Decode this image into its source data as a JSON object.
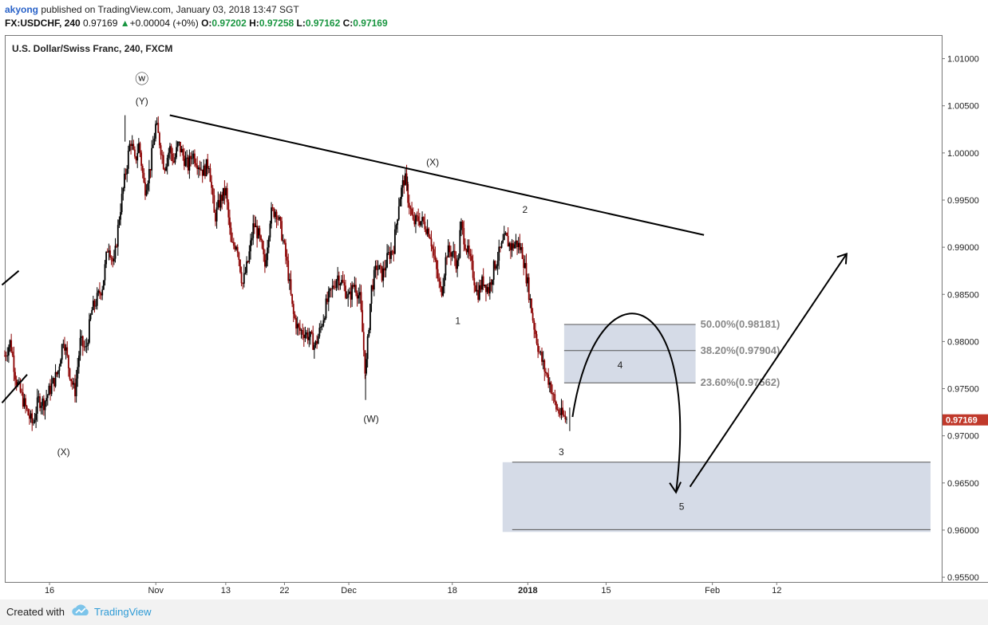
{
  "header": {
    "user": "akyong",
    "published": "published on TradingView.com, January 03, 2018 13:47 SGT",
    "symbol": "FX:USDCHF, 240",
    "last": "0.97169",
    "change_arrow": "▲",
    "change": "+0.00004 (+0%)",
    "o_label": "O:",
    "o": "0.97202",
    "h_label": "H:",
    "h": "0.97258",
    "l_label": "L:",
    "l": "0.97162",
    "c_label": "C:",
    "c": "0.97169"
  },
  "chart_data": {
    "type": "candlestick",
    "title": "U.S. Dollar/Swiss Franc, 240, FXCM",
    "ylim": [
      0.9545,
      1.0125
    ],
    "y_ticks": [
      "1.01000",
      "1.00500",
      "1.00000",
      "0.99500",
      "0.99000",
      "0.98500",
      "0.98000",
      "0.97500",
      "0.97000",
      "0.96500",
      "0.96000",
      "0.95500"
    ],
    "x_ticks": [
      "16",
      "Nov",
      "13",
      "22",
      "Dec",
      "18",
      "2018",
      "15",
      "Feb",
      "12"
    ],
    "last_price": "0.97169",
    "price_path": [
      [
        0,
        0.9785
      ],
      [
        4,
        0.98
      ],
      [
        8,
        0.976
      ],
      [
        12,
        0.9742
      ],
      [
        16,
        0.9725
      ],
      [
        20,
        0.9712
      ],
      [
        24,
        0.9738
      ],
      [
        28,
        0.9735
      ],
      [
        32,
        0.9748
      ],
      [
        38,
        0.9768
      ],
      [
        42,
        0.9805
      ],
      [
        46,
        0.977
      ],
      [
        50,
        0.9745
      ],
      [
        54,
        0.98
      ],
      [
        58,
        0.979
      ],
      [
        62,
        0.9832
      ],
      [
        66,
        0.9845
      ],
      [
        70,
        0.986
      ],
      [
        74,
        0.9905
      ],
      [
        78,
        0.988
      ],
      [
        82,
        0.9935
      ],
      [
        86,
        0.9975
      ],
      [
        90,
        1.0015
      ],
      [
        93,
        0.999
      ],
      [
        96,
        1.001
      ],
      [
        100,
        0.996
      ],
      [
        104,
        0.9985
      ],
      [
        108,
        1.003
      ],
      [
        111,
        1.001
      ],
      [
        114,
        0.9985
      ],
      [
        118,
        1.0005
      ],
      [
        121,
        0.999
      ],
      [
        124,
        1.001
      ],
      [
        128,
        0.9995
      ],
      [
        131,
        0.9985
      ],
      [
        134,
        1.0
      ],
      [
        138,
        0.999
      ],
      [
        142,
        0.998
      ],
      [
        146,
        0.999
      ],
      [
        150,
        0.993
      ],
      [
        154,
        0.995
      ],
      [
        158,
        0.996
      ],
      [
        162,
        0.99
      ],
      [
        166,
        0.9905
      ],
      [
        170,
        0.986
      ],
      [
        174,
        0.9885
      ],
      [
        178,
        0.9925
      ],
      [
        182,
        0.991
      ],
      [
        186,
        0.988
      ],
      [
        190,
        0.9935
      ],
      [
        194,
        0.994
      ],
      [
        198,
        0.9915
      ],
      [
        202,
        0.988
      ],
      [
        206,
        0.983
      ],
      [
        210,
        0.9812
      ],
      [
        214,
        0.981
      ],
      [
        218,
        0.9805
      ],
      [
        222,
        0.9795
      ],
      [
        226,
        0.9815
      ],
      [
        230,
        0.984
      ],
      [
        234,
        0.9855
      ],
      [
        238,
        0.987
      ],
      [
        242,
        0.986
      ],
      [
        246,
        0.9845
      ],
      [
        250,
        0.9862
      ],
      [
        254,
        0.9845
      ],
      [
        258,
        0.9765
      ],
      [
        262,
        0.9855
      ],
      [
        266,
        0.988
      ],
      [
        270,
        0.987
      ],
      [
        274,
        0.989
      ],
      [
        278,
        0.99
      ],
      [
        282,
        0.995
      ],
      [
        286,
        0.9975
      ],
      [
        288,
        0.9955
      ],
      [
        292,
        0.9925
      ],
      [
        296,
        0.993
      ],
      [
        300,
        0.9925
      ],
      [
        304,
        0.9915
      ],
      [
        308,
        0.988
      ],
      [
        312,
        0.985
      ],
      [
        316,
        0.9895
      ],
      [
        320,
        0.9895
      ],
      [
        324,
        0.988
      ],
      [
        326,
        0.9925
      ],
      [
        330,
        0.99
      ],
      [
        334,
        0.9878
      ],
      [
        338,
        0.985
      ],
      [
        342,
        0.9865
      ],
      [
        346,
        0.9855
      ],
      [
        350,
        0.988
      ],
      [
        354,
        0.9895
      ],
      [
        358,
        0.991
      ],
      [
        362,
        0.99
      ],
      [
        366,
        0.9905
      ],
      [
        370,
        0.9895
      ],
      [
        374,
        0.986
      ],
      [
        378,
        0.982
      ],
      [
        382,
        0.979
      ],
      [
        386,
        0.977
      ],
      [
        390,
        0.9755
      ],
      [
        394,
        0.973
      ],
      [
        398,
        0.9722
      ],
      [
        402,
        0.9717
      ]
    ],
    "trendlines": [
      {
        "x1": 118,
        "y1": 1.004,
        "x2": 500,
        "y2": 0.9913
      },
      {
        "x1": -2,
        "y1": 0.986,
        "x2": 10,
        "y2": 0.9875
      },
      {
        "x1": -2,
        "y1": 0.9735,
        "x2": 16,
        "y2": 0.9765
      }
    ],
    "wave_labels": [
      {
        "text": "ⓦ",
        "x": 98,
        "y": 1.0077
      },
      {
        "text": "(Y)",
        "x": 98,
        "y": 1.0055
      },
      {
        "text": "(X)",
        "x": 306,
        "y": 0.999
      },
      {
        "text": "2",
        "x": 372,
        "y": 0.994
      },
      {
        "text": "1",
        "x": 324,
        "y": 0.9822
      },
      {
        "text": "4",
        "x": 440,
        "y": 0.9775
      },
      {
        "text": "(W)",
        "x": 262,
        "y": 0.9718
      },
      {
        "text": "(X)",
        "x": 42,
        "y": 0.9683
      },
      {
        "text": "3",
        "x": 398,
        "y": 0.9683
      },
      {
        "text": "5",
        "x": 484,
        "y": 0.9625
      }
    ],
    "fib_levels": [
      {
        "label": "50.00%(0.98181)",
        "value": 0.98181
      },
      {
        "label": "38.20%(0.97904)",
        "value": 0.97904
      },
      {
        "label": "23.60%(0.97562)",
        "value": 0.97562
      }
    ],
    "fib_zone": {
      "x_start": 400,
      "x_end": 494,
      "top": 0.98181,
      "bottom": 0.97562
    },
    "target_zone": {
      "x_start": 356,
      "x_end": 662,
      "top": 0.9672,
      "bottom": 0.9598
    },
    "projection": {
      "arc": [
        [
          406,
          0.972
        ],
        [
          470,
          0.9838
        ],
        [
          480,
          0.964
        ]
      ],
      "arrow_end": [
        480,
        0.964
      ],
      "rise": [
        [
          490,
          0.9646
        ],
        [
          602,
          0.9893
        ]
      ]
    },
    "colors": {
      "up_candle": "#000000",
      "down_candle": "#8b0000",
      "zone": "#d5dbe7",
      "price_tag": "#c0392b"
    }
  },
  "footer": {
    "created": "Created with",
    "brand": "TradingView"
  }
}
